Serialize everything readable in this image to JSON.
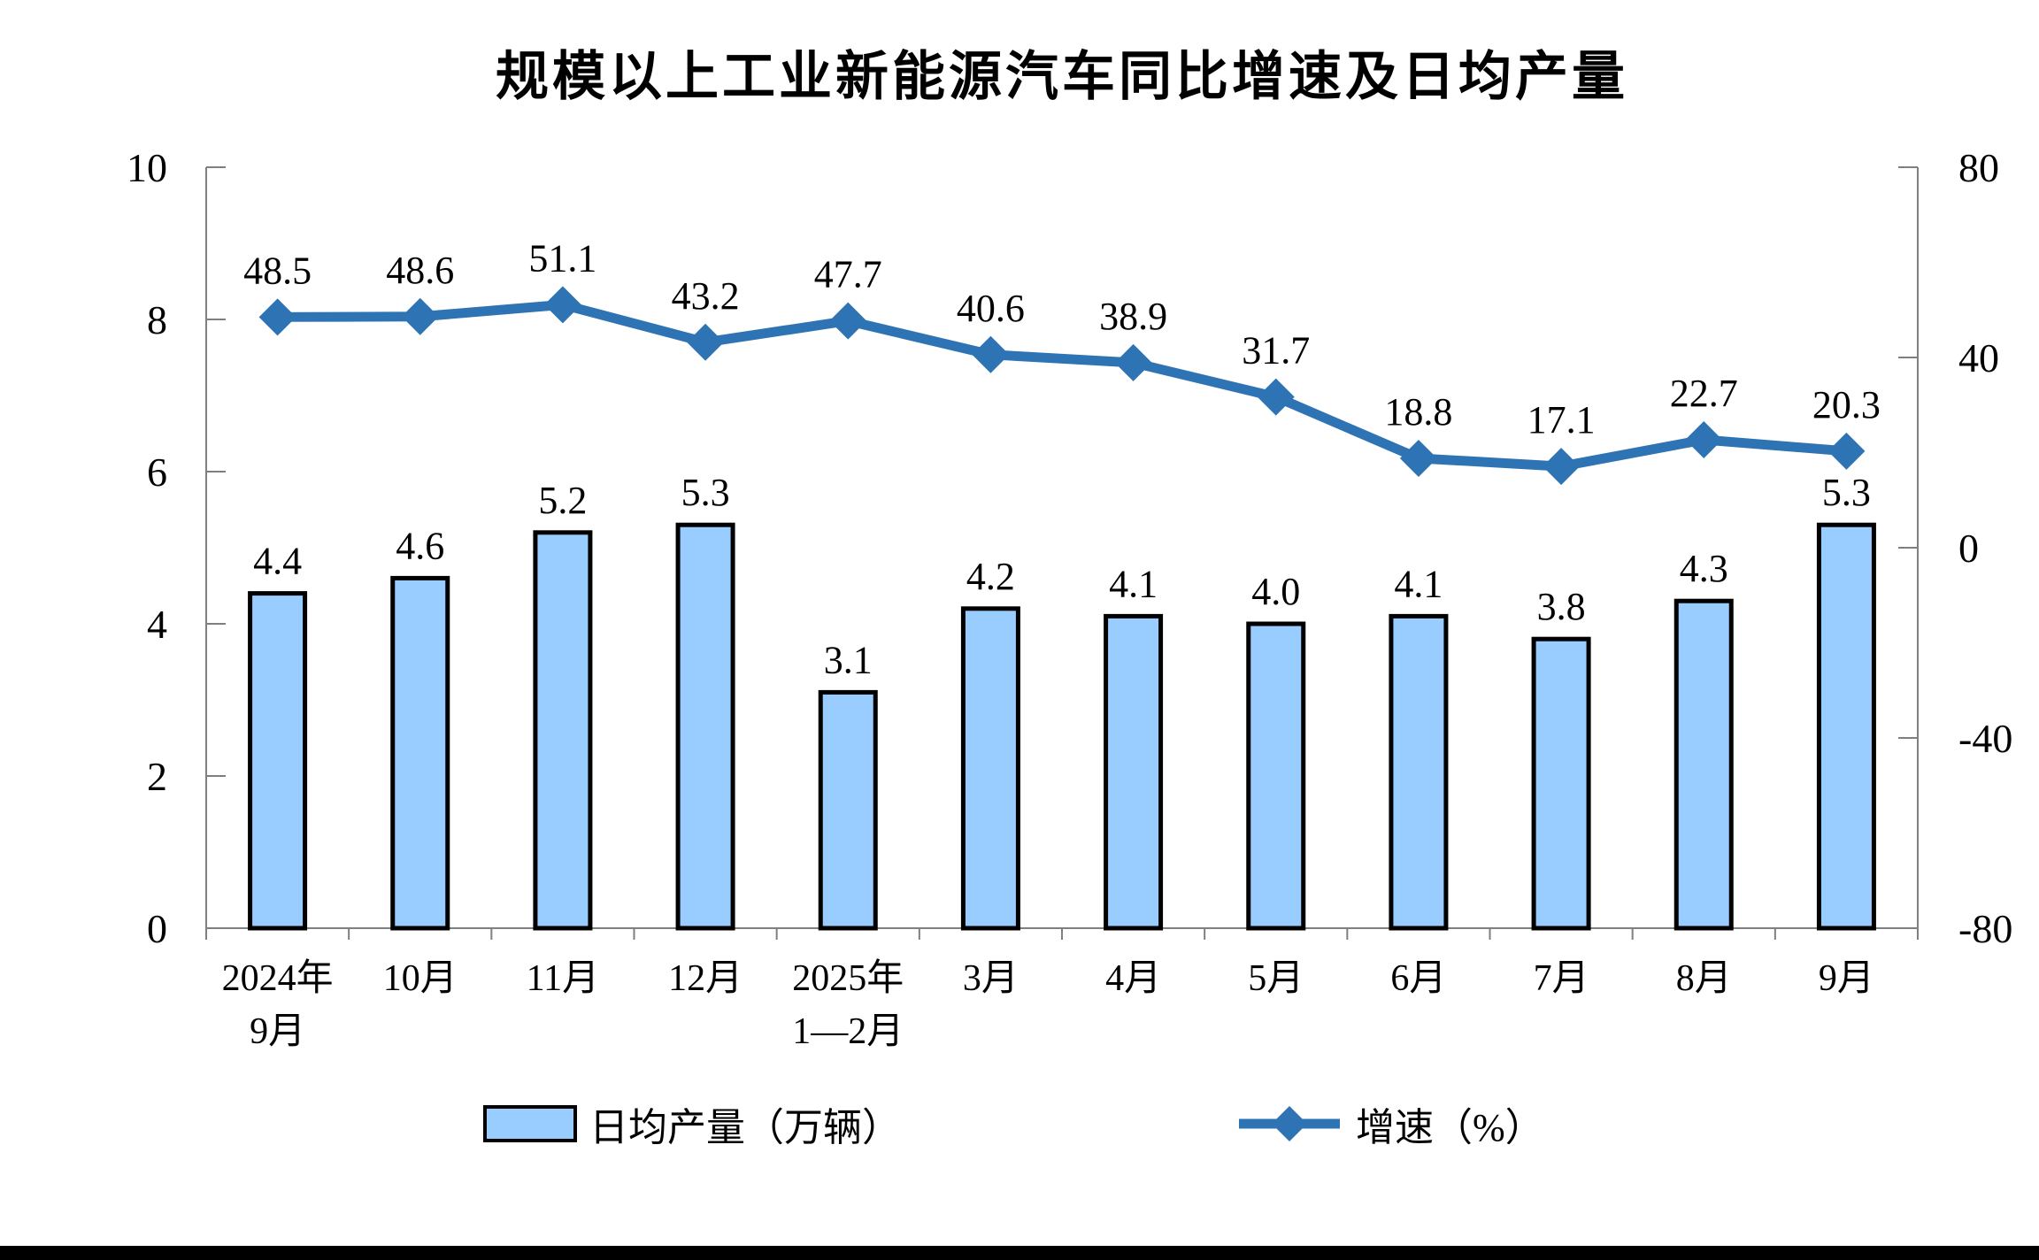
{
  "title": "规模以上工业新能源汽车同比增速及日均产量",
  "legend": {
    "bar": "日均产量（万辆）",
    "line": "增速（%）"
  },
  "colors": {
    "bar_fill": "#99CCFF",
    "bar_stroke": "#000000",
    "line": "#2E74B5",
    "axis": "#7F7F7F",
    "text": "#000000",
    "bottom_bar": "#000000"
  },
  "chart_data": {
    "type": "bar",
    "subtype": "combo-bar-line",
    "title": "规模以上工业新能源汽车同比增速及日均产量",
    "categories": [
      "2024年\n9月",
      "10月",
      "11月",
      "12月",
      "2025年\n1—2月",
      "3月",
      "4月",
      "5月",
      "6月",
      "7月",
      "8月",
      "9月"
    ],
    "series": [
      {
        "name": "日均产量（万辆）",
        "type": "bar",
        "axis": "left",
        "values": [
          4.4,
          4.6,
          5.2,
          5.3,
          3.1,
          4.2,
          4.1,
          4.0,
          4.1,
          3.8,
          4.3,
          5.3
        ],
        "labels": [
          "4.4",
          "4.6",
          "5.2",
          "5.3",
          "3.1",
          "4.2",
          "4.1",
          "4.0",
          "4.1",
          "3.8",
          "4.3",
          "5.3"
        ]
      },
      {
        "name": "增速（%）",
        "type": "line",
        "axis": "right",
        "values": [
          48.5,
          48.6,
          51.1,
          43.2,
          47.7,
          40.6,
          38.9,
          31.7,
          18.8,
          17.1,
          22.7,
          20.3
        ],
        "labels": [
          "48.5",
          "48.6",
          "51.1",
          "43.2",
          "47.7",
          "40.6",
          "38.9",
          "31.7",
          "18.8",
          "17.1",
          "22.7",
          "20.3"
        ]
      }
    ],
    "left_axis": {
      "min": 0,
      "max": 10,
      "ticks": [
        0,
        2,
        4,
        6,
        8,
        10
      ]
    },
    "right_axis": {
      "min": -80,
      "max": 80,
      "ticks": [
        -80,
        -40,
        0,
        40,
        80
      ]
    },
    "grid": false,
    "legend_position": "bottom",
    "xlabel": "",
    "ylabel_left": "",
    "ylabel_right": ""
  }
}
